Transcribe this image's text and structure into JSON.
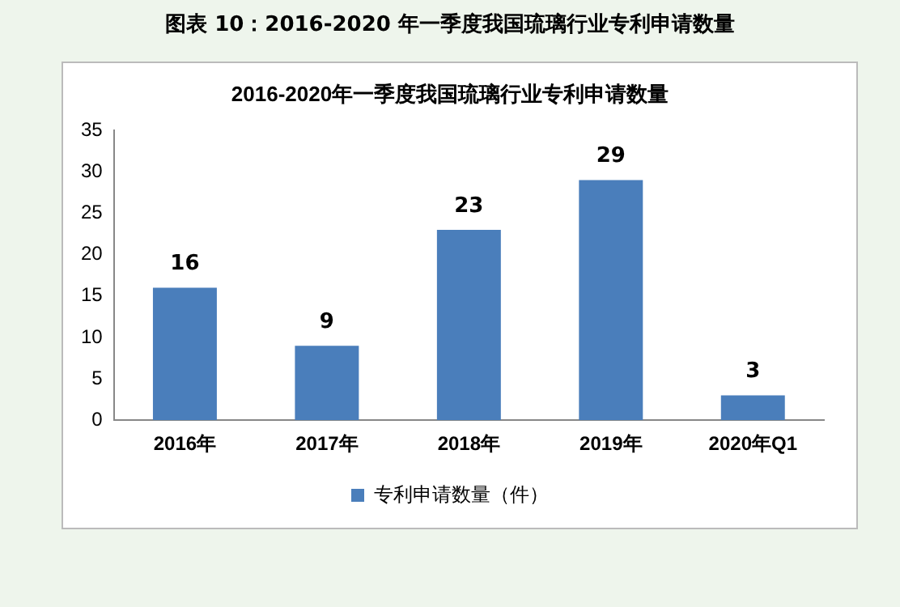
{
  "chart_data": {
    "type": "bar",
    "title": "2016-2020年一季度我国琉璃行业专利申请数量",
    "annotations": [
      "图表  10：2016-2020 年一季度我国琉璃行业专利申请数量"
    ],
    "categories": [
      "2016年",
      "2017年",
      "2018年",
      "2019年",
      "2020年Q1"
    ],
    "series": [
      {
        "name": "专利申请数量（件）",
        "color": "#4a7ebb",
        "values": [
          16,
          9,
          23,
          29,
          3
        ]
      }
    ],
    "ylim": [
      0,
      35
    ],
    "yticks": [
      0,
      5,
      10,
      15,
      20,
      25,
      30,
      35
    ],
    "grid": false,
    "legend": "bottom",
    "data_labels": true
  }
}
